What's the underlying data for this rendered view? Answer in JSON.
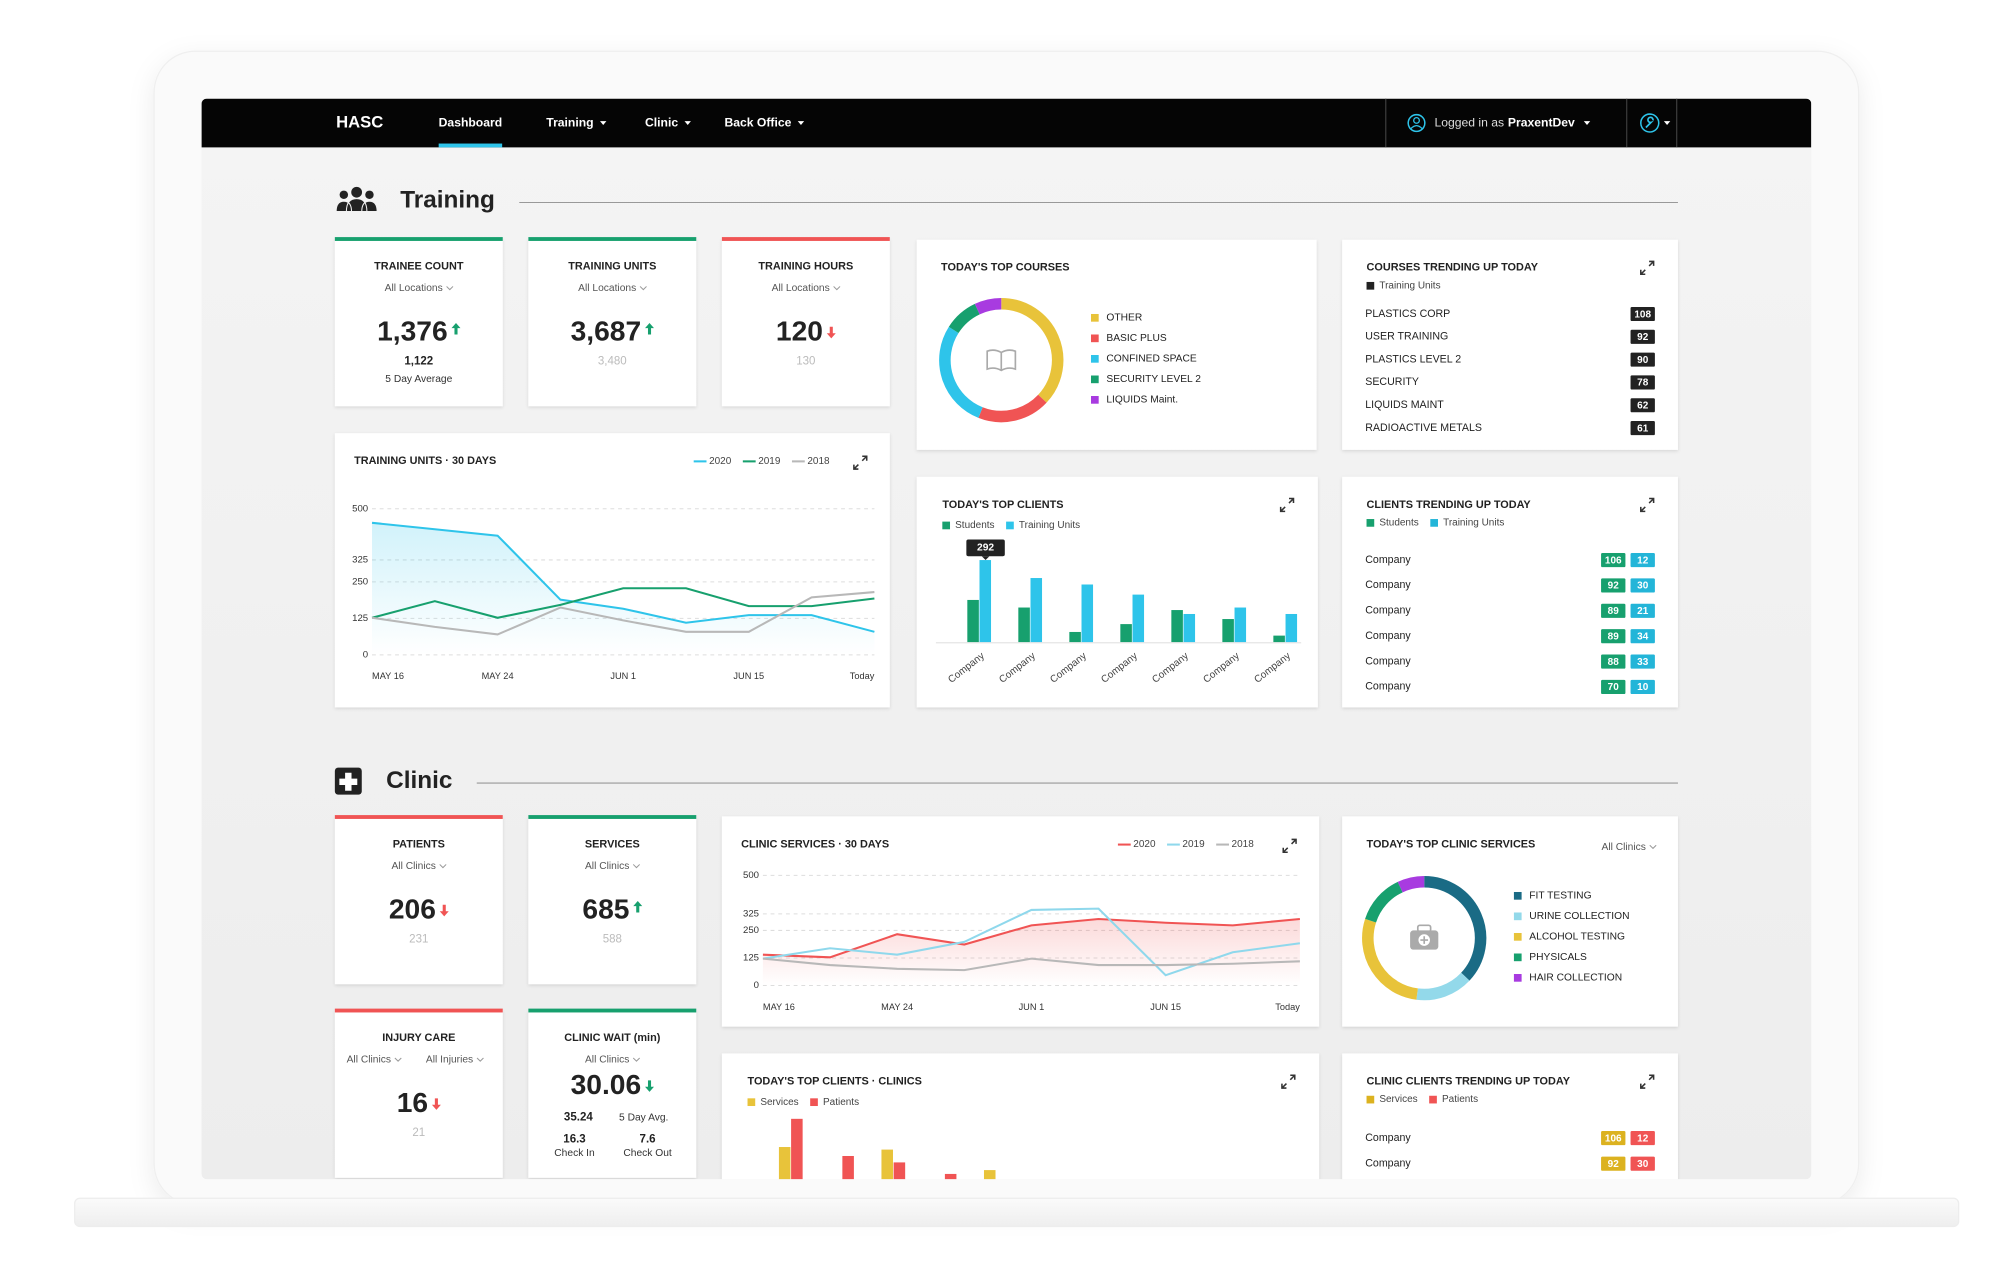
{
  "nav": {
    "brand": "HASC",
    "items": [
      "Dashboard",
      "Training",
      "Clinic",
      "Back Office"
    ],
    "user_prefix": "Logged in as",
    "user": "PraxentDev"
  },
  "training": {
    "title": "Training",
    "kpis": [
      {
        "title": "TRAINEE COUNT",
        "filters": [
          "All Locations"
        ],
        "value": "1,376",
        "trend": "up",
        "accent": "#17a06e",
        "sub_value": "1,122",
        "sub_label": "5 Day Average"
      },
      {
        "title": "TRAINING UNITS",
        "filters": [
          "All Locations"
        ],
        "value": "3,687",
        "trend": "up",
        "accent": "#17a06e",
        "sub_value": "3,480"
      },
      {
        "title": "TRAINING HOURS",
        "filters": [
          "All Locations"
        ],
        "value": "120",
        "trend": "down",
        "accent": "#f05454",
        "sub_value": "130"
      }
    ],
    "units_chart": {
      "type": "line",
      "title": "TRAINING UNITS · 30 DAYS",
      "categories": [
        "MAY 16",
        null,
        "MAY 24",
        null,
        "JUN 1",
        null,
        "JUN 15",
        null,
        "Today"
      ],
      "ylim": [
        0,
        500
      ],
      "yticks": [
        0,
        125,
        250,
        325,
        500
      ],
      "grid": true,
      "series": [
        {
          "name": "2020",
          "color": "#2ec4ea",
          "values": [
            452,
            430,
            408,
            189,
            158,
            110,
            136,
            136,
            79
          ]
        },
        {
          "name": "2019",
          "color": "#17a06e",
          "values": [
            127,
            184,
            127,
            171,
            228,
            228,
            167,
            167,
            193
          ]
        },
        {
          "name": "2018",
          "color": "#b8b8b8",
          "values": [
            127,
            96,
            70,
            162,
            118,
            79,
            79,
            197,
            215
          ]
        }
      ]
    },
    "top_courses": {
      "type": "donut",
      "title": "TODAY'S TOP COURSES",
      "categories": [
        "OTHER",
        "BASIC PLUS",
        "CONFINED SPACE",
        "SECURITY LEVEL 2",
        "LIQUIDS Maint."
      ],
      "values": [
        37,
        19,
        28,
        9,
        7
      ],
      "colors": [
        "#e8c33a",
        "#f05454",
        "#2ec4ea",
        "#17a06e",
        "#a83be0"
      ]
    },
    "courses_trending": {
      "title": "COURSES TRENDING UP TODAY",
      "series": [
        {
          "name": "Training Units",
          "color": "#222222"
        }
      ],
      "rows": [
        {
          "name": "PLASTICS CORP",
          "values": [
            108
          ]
        },
        {
          "name": "USER TRAINING",
          "values": [
            92
          ]
        },
        {
          "name": "PLASTICS LEVEL 2",
          "values": [
            90
          ]
        },
        {
          "name": "SECURITY",
          "values": [
            78
          ]
        },
        {
          "name": "LIQUIDS MAINT",
          "values": [
            62
          ]
        },
        {
          "name": "RADIOACTIVE METALS",
          "values": [
            61
          ]
        }
      ]
    },
    "top_clients": {
      "type": "bar",
      "title": "TODAY'S TOP CLIENTS",
      "categories": [
        "Company",
        "Company",
        "Company",
        "Company",
        "Company",
        "Company",
        "Company"
      ],
      "series": [
        {
          "name": "Students",
          "color": "#17a06e",
          "values": [
            150,
            123,
            36,
            64,
            114,
            82,
            23
          ]
        },
        {
          "name": "Training Units",
          "color": "#2ec4ea",
          "values": [
            292,
            228,
            205,
            169,
            100,
            123,
            100
          ]
        }
      ],
      "tooltip": {
        "series": 1,
        "index": 0
      }
    },
    "clients_trending": {
      "title": "CLIENTS TRENDING UP TODAY",
      "series": [
        {
          "name": "Students",
          "color": "#17a06e"
        },
        {
          "name": "Training Units",
          "color": "#23b5d8"
        }
      ],
      "rows": [
        {
          "name": "Company",
          "values": [
            106,
            12
          ]
        },
        {
          "name": "Company",
          "values": [
            92,
            30
          ]
        },
        {
          "name": "Company",
          "values": [
            89,
            21
          ]
        },
        {
          "name": "Company",
          "values": [
            89,
            34
          ]
        },
        {
          "name": "Company",
          "values": [
            88,
            33
          ]
        },
        {
          "name": "Company",
          "values": [
            70,
            10
          ]
        }
      ]
    }
  },
  "clinic": {
    "title": "Clinic",
    "kpis": [
      {
        "title": "PATIENTS",
        "filters": [
          "All Clinics"
        ],
        "value": "206",
        "trend": "down",
        "accent": "#f05454",
        "sub_value": "231"
      },
      {
        "title": "SERVICES",
        "filters": [
          "All Clinics"
        ],
        "value": "685",
        "trend": "up",
        "accent": "#17a06e",
        "sub_value": "588"
      },
      {
        "title": "INJURY CARE",
        "filters": [
          "All Clinics",
          "All Injuries"
        ],
        "value": "16",
        "trend": "down",
        "accent": "#f05454",
        "sub_value": "21"
      },
      {
        "title": "CLINIC WAIT (min)",
        "filters": [
          "All Clinics"
        ],
        "value": "30.06",
        "trend": "down",
        "accent": "#17a06e",
        "sub_value": "35.24",
        "sub_label": "5 Day Avg.",
        "details": [
          {
            "value": "16.3",
            "label": "Check In"
          },
          {
            "value": "7.6",
            "label": "Check Out"
          }
        ]
      }
    ],
    "services_chart": {
      "type": "line",
      "title": "CLINIC SERVICES · 30 DAYS",
      "categories": [
        "MAY 16",
        null,
        "MAY 24",
        null,
        "JUN 1",
        null,
        "JUN 15",
        null,
        "Today"
      ],
      "ylim": [
        0,
        500
      ],
      "yticks": [
        0,
        125,
        250,
        325,
        500
      ],
      "grid": true,
      "series": [
        {
          "name": "2020",
          "color": "#f05454",
          "values": [
            140,
            128,
            233,
            186,
            273,
            302,
            285,
            273,
            302
          ]
        },
        {
          "name": "2019",
          "color": "#8fd8ec",
          "values": [
            122,
            169,
            140,
            198,
            343,
            349,
            47,
            151,
            192
          ]
        },
        {
          "name": "2018",
          "color": "#b8b8b8",
          "values": [
            122,
            93,
            76,
            70,
            122,
            93,
            93,
            99,
            110
          ]
        }
      ]
    },
    "top_services": {
      "type": "donut",
      "title": "TODAY'S TOP CLINIC SERVICES",
      "filter": "All Clinics",
      "categories": [
        "FIT TESTING",
        "URINE COLLECTION",
        "ALCOHOL TESTING",
        "PHYSICALS",
        "HAIR COLLECTION"
      ],
      "values": [
        37,
        15,
        28,
        13,
        7
      ],
      "colors": [
        "#1a6b85",
        "#93d9ea",
        "#e8c33a",
        "#17a06e",
        "#a83be0"
      ]
    },
    "top_clients": {
      "type": "bar",
      "title": "TODAY'S TOP CLIENTS · CLINICS",
      "series": [
        {
          "name": "Services",
          "color": "#e8c33a",
          "values": [
            55,
            null,
            53,
            null,
            37
          ]
        },
        {
          "name": "Patients",
          "color": "#f05454",
          "values": [
            77,
            48,
            43,
            34,
            null
          ]
        }
      ]
    },
    "clients_trending": {
      "title": "CLINIC CLIENTS TRENDING UP TODAY",
      "series": [
        {
          "name": "Services",
          "color": "#dcb21f"
        },
        {
          "name": "Patients",
          "color": "#f05454"
        }
      ],
      "rows": [
        {
          "name": "Company",
          "values": [
            106,
            12
          ]
        },
        {
          "name": "Company",
          "values": [
            92,
            30
          ]
        }
      ]
    }
  }
}
